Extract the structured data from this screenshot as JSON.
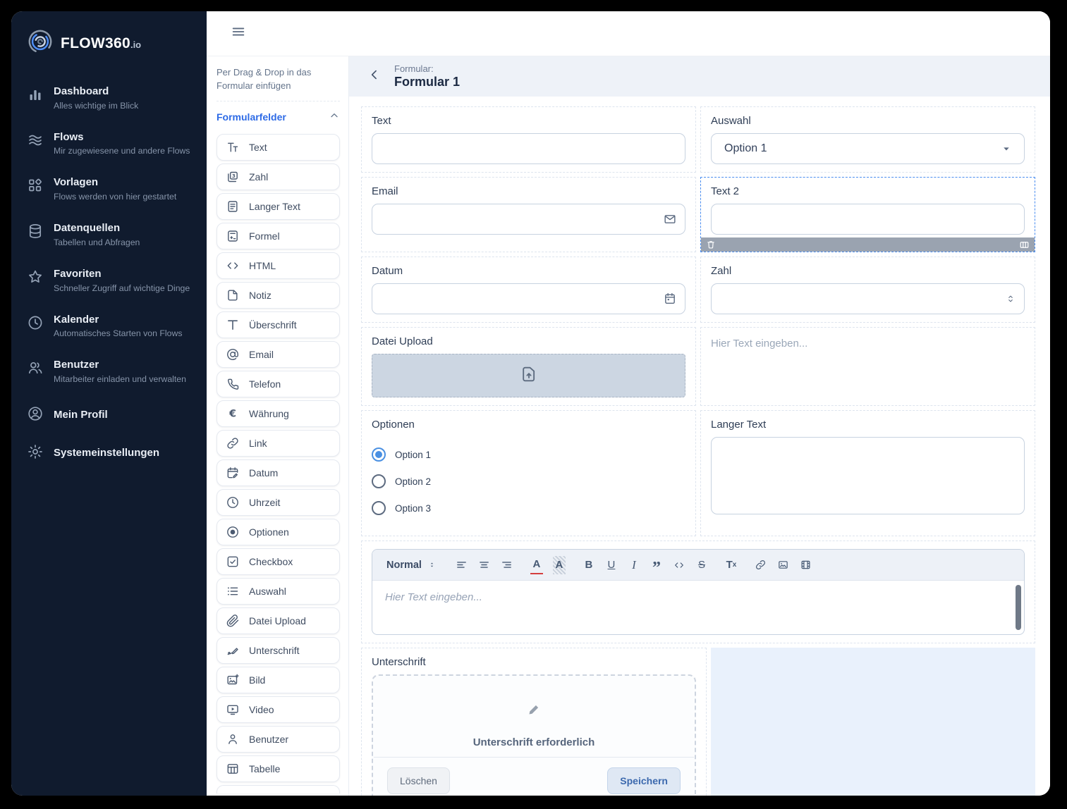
{
  "brand": {
    "name": "FLOW360",
    "tld": ".io"
  },
  "sidebar": {
    "items": [
      {
        "icon": "bar-chart",
        "label": "Dashboard",
        "subtitle": "Alles wichtige im Blick"
      },
      {
        "icon": "waves",
        "label": "Flows",
        "subtitle": "Mir zugewiesene und andere Flows"
      },
      {
        "icon": "shapes",
        "label": "Vorlagen",
        "subtitle": "Flows werden von hier gestartet"
      },
      {
        "icon": "database",
        "label": "Datenquellen",
        "subtitle": "Tabellen und Abfragen"
      },
      {
        "icon": "star",
        "label": "Favoriten",
        "subtitle": "Schneller Zugriff auf wichtige Dinge"
      },
      {
        "icon": "clock",
        "label": "Kalender",
        "subtitle": "Automatisches Starten von Flows"
      },
      {
        "icon": "users",
        "label": "Benutzer",
        "subtitle": "Mitarbeiter einladen und verwalten"
      },
      {
        "icon": "user-circle",
        "label": "Mein Profil",
        "subtitle": ""
      },
      {
        "icon": "gear",
        "label": "Systemeinstellungen",
        "subtitle": ""
      }
    ]
  },
  "palette": {
    "hint": "Per Drag & Drop in das Formular einfügen",
    "section_title": "Formularfelder",
    "items": [
      {
        "icon": "text",
        "label": "Text"
      },
      {
        "icon": "number",
        "label": "Zahl"
      },
      {
        "icon": "long-text",
        "label": "Langer Text"
      },
      {
        "icon": "formula",
        "label": "Formel"
      },
      {
        "icon": "code",
        "label": "HTML"
      },
      {
        "icon": "note",
        "label": "Notiz"
      },
      {
        "icon": "heading",
        "label": "Überschrift"
      },
      {
        "icon": "at",
        "label": "Email"
      },
      {
        "icon": "phone",
        "label": "Telefon"
      },
      {
        "icon": "currency",
        "label": "Währung"
      },
      {
        "icon": "link",
        "label": "Link"
      },
      {
        "icon": "calendar-edit",
        "label": "Datum"
      },
      {
        "icon": "time",
        "label": "Uhrzeit"
      },
      {
        "icon": "radio",
        "label": "Optionen"
      },
      {
        "icon": "checkbox",
        "label": "Checkbox"
      },
      {
        "icon": "list",
        "label": "Auswahl"
      },
      {
        "icon": "paperclip",
        "label": "Datei Upload"
      },
      {
        "icon": "signature",
        "label": "Unterschrift"
      },
      {
        "icon": "image-plus",
        "label": "Bild"
      },
      {
        "icon": "video",
        "label": "Video"
      },
      {
        "icon": "person",
        "label": "Benutzer"
      },
      {
        "icon": "table",
        "label": "Tabelle"
      }
    ]
  },
  "header": {
    "eyebrow": "Formular:",
    "title": "Formular 1"
  },
  "form": {
    "text": {
      "label": "Text",
      "value": ""
    },
    "auswahl": {
      "label": "Auswahl",
      "value": "Option 1"
    },
    "email": {
      "label": "Email",
      "value": ""
    },
    "text2": {
      "label": "Text 2",
      "value": ""
    },
    "datum": {
      "label": "Datum",
      "value": ""
    },
    "zahl": {
      "label": "Zahl",
      "value": ""
    },
    "datei_upload": {
      "label": "Datei Upload"
    },
    "notiz": {
      "placeholder": "Hier Text eingeben..."
    },
    "optionen": {
      "label": "Optionen",
      "options": [
        {
          "label": "Option 1",
          "selected": true
        },
        {
          "label": "Option 2",
          "selected": false
        },
        {
          "label": "Option 3",
          "selected": false
        }
      ]
    },
    "langer_text": {
      "label": "Langer Text",
      "value": ""
    },
    "editor": {
      "format": "Normal",
      "placeholder": "Hier Text eingeben...",
      "color": "A",
      "highlight": "A",
      "bold": "B",
      "underline": "U",
      "italic": "I",
      "quote": "”",
      "strike": "S",
      "clear_main": "T",
      "clear_sub": "x"
    },
    "unterschrift": {
      "label": "Unterschrift",
      "hint": "Unterschrift erforderlich",
      "clear_button": "Löschen",
      "save_button": "Speichern"
    }
  },
  "colors": {
    "accent_blue": "#2e6be6",
    "selection_blue": "#4a8df0",
    "sidebar_bg": "#101b2e",
    "header_bg": "#eef2f8",
    "canvas_blue": "#e9f1fc",
    "field_toolbar_gray": "#9aa3b0",
    "radio_blue": "#4a90e2"
  }
}
